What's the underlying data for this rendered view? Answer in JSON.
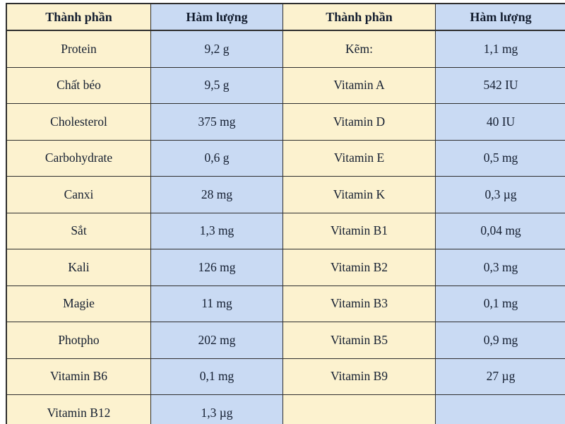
{
  "table": {
    "headers": [
      "Thành phần",
      "Hàm lượng",
      "Thành phần",
      "Hàm lượng"
    ],
    "rows": [
      [
        "Protein",
        "9,2 g",
        "Kẽm:",
        "1,1 mg"
      ],
      [
        "Chất béo",
        "9,5 g",
        "Vitamin A",
        "542 IU"
      ],
      [
        "Cholesterol",
        "375 mg",
        "Vitamin D",
        "40 IU"
      ],
      [
        "Carbohydrate",
        "0,6 g",
        "Vitamin E",
        "0,5 mg"
      ],
      [
        "Canxi",
        "28 mg",
        "Vitamin K",
        "0,3 µg"
      ],
      [
        "Sắt",
        "1,3 mg",
        "Vitamin B1",
        "0,04 mg"
      ],
      [
        "Kali",
        "126 mg",
        "Vitamin B2",
        "0,3 mg"
      ],
      [
        "Magie",
        "11 mg",
        "Vitamin B3",
        "0,1 mg"
      ],
      [
        "Photpho",
        "202 mg",
        "Vitamin B5",
        "0,9 mg"
      ],
      [
        "Vitamin B6",
        "0,1 mg",
        "Vitamin B9",
        "27 µg"
      ],
      [
        "Vitamin B12",
        "1,3 µg",
        "",
        ""
      ]
    ],
    "colors": {
      "component_column_bg": "#fcf2cf",
      "value_column_bg": "#c9daf3",
      "border": "#2e2e2e",
      "text": "#141e30"
    }
  }
}
